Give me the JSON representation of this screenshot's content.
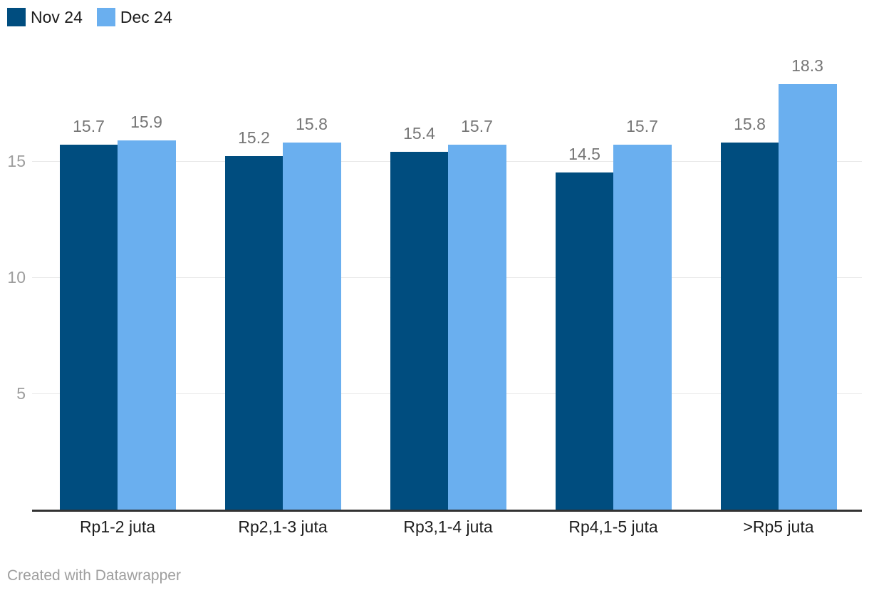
{
  "legend": {
    "items": [
      {
        "label": "Nov 24",
        "color": "#004d7f"
      },
      {
        "label": "Dec 24",
        "color": "#6aafef"
      }
    ]
  },
  "chart_data": {
    "type": "bar",
    "categories": [
      "Rp1-2 juta",
      "Rp2,1-3 juta",
      "Rp3,1-4 juta",
      "Rp4,1-5 juta",
      ">Rp5 juta"
    ],
    "series": [
      {
        "name": "Nov 24",
        "color": "#004d7f",
        "values": [
          15.7,
          15.2,
          15.4,
          14.5,
          15.8
        ]
      },
      {
        "name": "Dec 24",
        "color": "#6aafef",
        "values": [
          15.9,
          15.8,
          15.7,
          15.7,
          18.3
        ]
      }
    ],
    "title": "",
    "xlabel": "",
    "ylabel": "",
    "y_ticks": [
      5,
      10,
      15
    ],
    "ylim": [
      0,
      20
    ],
    "grid": "horizontal",
    "legend_position": "top-left",
    "value_labels": true
  },
  "colors": {
    "series_1": "#004d7f",
    "series_2": "#6aafef",
    "gridline": "#e8e8e8",
    "axis_line": "#333333",
    "value_label": "#767676",
    "tick_label": "#9d9d9d",
    "category_label": "#1d1d1d",
    "credit": "#9e9e9e"
  },
  "footer": {
    "credit": "Created with Datawrapper"
  }
}
